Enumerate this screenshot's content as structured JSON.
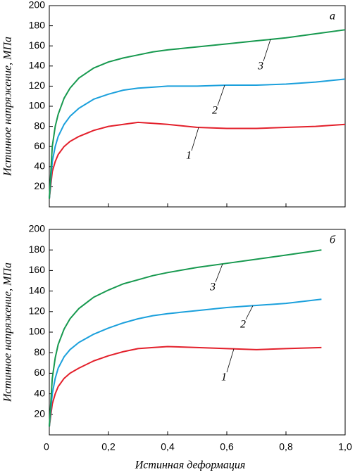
{
  "chart_data": [
    {
      "type": "line",
      "panel_label": "а",
      "ylabel": "Истинное напряжение, МПа",
      "x": [
        0,
        0.01,
        0.02,
        0.03,
        0.05,
        0.07,
        0.1,
        0.15,
        0.2,
        0.25,
        0.3,
        0.35,
        0.4,
        0.5,
        0.6,
        0.7,
        0.8,
        0.9,
        1.0
      ],
      "series": [
        {
          "name": "1",
          "color": "#e3202b",
          "values": [
            8,
            35,
            45,
            52,
            60,
            65,
            70,
            76,
            80,
            82,
            84,
            83,
            82,
            79,
            78,
            78,
            79,
            80,
            82
          ]
        },
        {
          "name": "2",
          "color": "#1ba0dc",
          "values": [
            8,
            45,
            60,
            70,
            82,
            90,
            98,
            107,
            112,
            116,
            118,
            119,
            120,
            120,
            121,
            121,
            122,
            124,
            127
          ]
        },
        {
          "name": "3",
          "color": "#17994f",
          "values": [
            8,
            60,
            80,
            92,
            108,
            118,
            128,
            138,
            144,
            148,
            151,
            154,
            156,
            159,
            162,
            165,
            168,
            172,
            176
          ]
        }
      ],
      "xlim": [
        0,
        1.0
      ],
      "ylim": [
        0,
        200
      ],
      "yticks": [
        20,
        40,
        60,
        80,
        100,
        120,
        140,
        160,
        180,
        200
      ]
    },
    {
      "type": "line",
      "panel_label": "б",
      "ylabel": "Истинное напряжение, МПа",
      "xlabel": "Истинная деформация",
      "x": [
        0,
        0.01,
        0.02,
        0.03,
        0.05,
        0.07,
        0.1,
        0.15,
        0.2,
        0.25,
        0.3,
        0.35,
        0.4,
        0.5,
        0.6,
        0.7,
        0.8,
        0.92
      ],
      "series": [
        {
          "name": "1",
          "color": "#e3202b",
          "values": [
            8,
            30,
            40,
            47,
            55,
            60,
            65,
            72,
            77,
            81,
            84,
            85,
            86,
            85,
            84,
            83,
            84,
            85
          ]
        },
        {
          "name": "2",
          "color": "#1ba0dc",
          "values": [
            8,
            40,
            55,
            65,
            76,
            83,
            90,
            98,
            104,
            109,
            113,
            116,
            118,
            121,
            124,
            126,
            128,
            132
          ]
        },
        {
          "name": "3",
          "color": "#17994f",
          "values": [
            8,
            55,
            75,
            88,
            103,
            113,
            123,
            134,
            141,
            147,
            151,
            155,
            158,
            163,
            167,
            171,
            175,
            180
          ]
        }
      ],
      "xlim": [
        0,
        1.0
      ],
      "ylim": [
        0,
        200
      ],
      "yticks": [
        20,
        40,
        60,
        80,
        100,
        120,
        140,
        160,
        180,
        200
      ],
      "xticks": [
        0,
        {
          "value": 0.2,
          "label": "0,2"
        },
        {
          "value": 0.4,
          "label": "0,4"
        },
        {
          "value": 0.6,
          "label": "0,6"
        },
        {
          "value": 0.8,
          "label": "0,8"
        },
        {
          "value": 1.0,
          "label": "1,0"
        }
      ]
    }
  ]
}
